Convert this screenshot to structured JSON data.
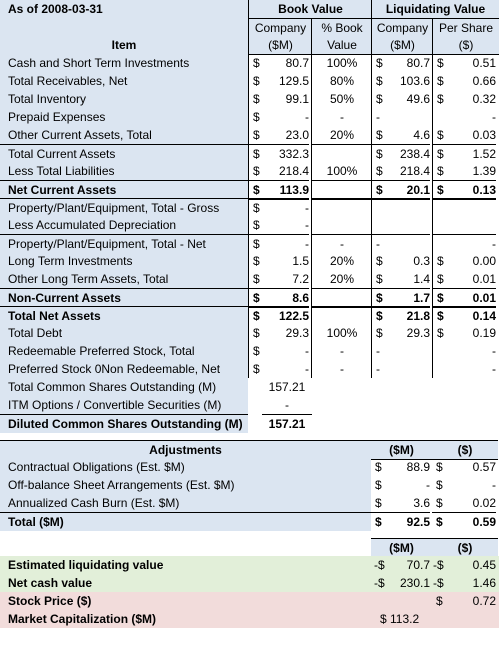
{
  "header": {
    "as_of": "As of 2008-03-31",
    "book_value": "Book Value",
    "liq_value": "Liquidating Value",
    "company": "Company",
    "pct_book": "% Book",
    "company2": "Company",
    "per_share": "Per Share",
    "item": "Item",
    "sm": "($M)",
    "value": "Value",
    "sm2": "($M)",
    "dollar": "($)"
  },
  "rows": [
    {
      "label": "Cash and Short Term Investments",
      "bv_s": "$",
      "bv": "80.7",
      "pct": "100%",
      "lv_s": "$",
      "lv": "80.7",
      "ps_s": "$",
      "ps": "0.51"
    },
    {
      "label": "Total Receivables, Net",
      "bv_s": "$",
      "bv": "129.5",
      "pct": "80%",
      "lv_s": "$",
      "lv": "103.6",
      "ps_s": "$",
      "ps": "0.66"
    },
    {
      "label": "Total Inventory",
      "bv_s": "$",
      "bv": "99.1",
      "pct": "50%",
      "lv_s": "$",
      "lv": "49.6",
      "ps_s": "$",
      "ps": "0.32"
    },
    {
      "label": "Prepaid Expenses",
      "bv_s": "$",
      "bv": "-",
      "pct": "-",
      "lv_s": "-",
      "lv": "",
      "ps_s": "",
      "ps": "-"
    },
    {
      "label": "Other Current Assets, Total",
      "bv_s": "$",
      "bv": "23.0",
      "pct": "20%",
      "lv_s": "$",
      "lv": "4.6",
      "ps_s": "$",
      "ps": "0.03"
    },
    {
      "label": "Total Current Assets",
      "bv_s": "$",
      "bv": "332.3",
      "pct": "",
      "lv_s": "$",
      "lv": "238.4",
      "ps_s": "$",
      "ps": "1.52"
    },
    {
      "label": "Less Total Liabilities",
      "bv_s": "$",
      "bv": "218.4",
      "pct": "100%",
      "lv_s": "$",
      "lv": "218.4",
      "ps_s": "$",
      "ps": "1.39"
    },
    {
      "label": "Net Current Assets",
      "bv_s": "$",
      "bv": "113.9",
      "pct": "",
      "lv_s": "$",
      "lv": "20.1",
      "ps_s": "$",
      "ps": "0.13"
    },
    {
      "label": "Property/Plant/Equipment, Total - Gross",
      "bv_s": "$",
      "bv": "-",
      "pct": "",
      "lv_s": "",
      "lv": "",
      "ps_s": "",
      "ps": ""
    },
    {
      "label": "Less Accumulated Depreciation",
      "bv_s": "$",
      "bv": "-",
      "pct": "",
      "lv_s": "",
      "lv": "",
      "ps_s": "",
      "ps": ""
    },
    {
      "label": "Property/Plant/Equipment, Total - Net",
      "bv_s": "$",
      "bv": "-",
      "pct": "-",
      "lv_s": "-",
      "lv": "",
      "ps_s": "",
      "ps": "-"
    },
    {
      "label": "Long Term Investments",
      "bv_s": "$",
      "bv": "1.5",
      "pct": "20%",
      "lv_s": "$",
      "lv": "0.3",
      "ps_s": "$",
      "ps": "0.00"
    },
    {
      "label": "Other Long Term Assets, Total",
      "bv_s": "$",
      "bv": "7.2",
      "pct": "20%",
      "lv_s": "$",
      "lv": "1.4",
      "ps_s": "$",
      "ps": "0.01"
    },
    {
      "label": "Non-Current Assets",
      "bv_s": "$",
      "bv": "8.6",
      "pct": "",
      "lv_s": "$",
      "lv": "1.7",
      "ps_s": "$",
      "ps": "0.01"
    },
    {
      "label": "Total Net Assets",
      "bv_s": "$",
      "bv": "122.5",
      "pct": "",
      "lv_s": "$",
      "lv": "21.8",
      "ps_s": "$",
      "ps": "0.14"
    },
    {
      "label": "Total Debt",
      "bv_s": "$",
      "bv": "29.3",
      "pct": "100%",
      "lv_s": "$",
      "lv": "29.3",
      "ps_s": "$",
      "ps": "0.19"
    },
    {
      "label": "Redeemable Preferred Stock, Total",
      "bv_s": "$",
      "bv": "-",
      "pct": "-",
      "lv_s": "-",
      "lv": "",
      "ps_s": "",
      "ps": "-"
    },
    {
      "label": "Preferred Stock 0Non Redeemable, Net",
      "bv_s": "$",
      "bv": "-",
      "pct": "-",
      "lv_s": "-",
      "lv": "",
      "ps_s": "",
      "ps": "-"
    }
  ],
  "shares": [
    {
      "label": "Total Common Shares Outstanding (M)",
      "value": "157.21"
    },
    {
      "label": "ITM Options / Convertible Securities (M)",
      "value": "-"
    },
    {
      "label": "Diluted Common Shares Outstanding (M)",
      "value": "157.21"
    }
  ],
  "adjustments": {
    "title": "Adjustments",
    "col1": "($M)",
    "col2": "($)",
    "rows": [
      {
        "label": "Contractual Obligations (Est. $M)",
        "s1": "$",
        "v1": "88.9",
        "s2": "$",
        "v2": "0.57"
      },
      {
        "label": "Off-balance Sheet Arrangements (Est. $M)",
        "s1": "$",
        "v1": "-",
        "s2": "$",
        "v2": "-"
      },
      {
        "label": "Annualized Cash Burn (Est. $M)",
        "s1": "$",
        "v1": "3.6",
        "s2": "$",
        "v2": "0.02"
      },
      {
        "label": "Total ($M)",
        "s1": "$",
        "v1": "92.5",
        "s2": "$",
        "v2": "0.59"
      }
    ]
  },
  "summary": {
    "col1": "($M)",
    "col2": "($)",
    "est_liq_label": "Estimated liquidating value",
    "est_liq_s1": "-$",
    "est_liq_v1": "70.7",
    "est_liq_s2": "-$",
    "est_liq_v2": "0.45",
    "net_cash_label": "Net cash value",
    "net_cash_s1": "-$",
    "net_cash_v1": "230.1",
    "net_cash_s2": "-$",
    "net_cash_v2": "1.46",
    "price_label": "Stock Price ($)",
    "price_s": "$",
    "price_v": "0.72",
    "mcap_label": "Market Capitalization ($M)",
    "mcap_v": "$ 113.2"
  }
}
